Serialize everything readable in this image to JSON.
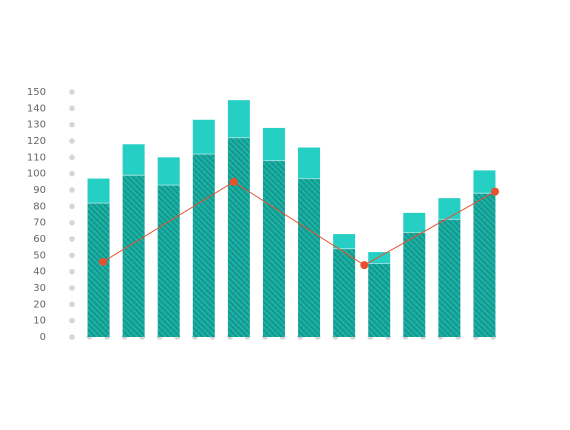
{
  "chart_data": {
    "type": "bar",
    "categories": [
      null,
      null,
      null,
      null,
      null,
      null,
      null,
      null,
      null,
      null,
      null,
      null
    ],
    "series": [
      {
        "color": "#17a99e",
        "values": [
          82,
          99,
          93,
          112,
          122,
          108,
          97,
          54,
          45,
          64,
          72,
          88
        ]
      },
      {
        "color": "#26cfc4",
        "values": [
          15,
          19,
          17,
          21,
          23,
          20,
          19,
          9,
          7,
          12,
          13,
          14
        ]
      }
    ],
    "line": {
      "color": "#e8502e",
      "values": [
        46,
        95,
        44,
        89
      ]
    },
    "stacked": true,
    "ylim": [
      0,
      150
    ],
    "yticks": [
      0,
      10,
      20,
      30,
      40,
      50,
      60,
      70,
      80,
      90,
      100,
      110,
      120,
      130,
      140,
      150
    ]
  }
}
